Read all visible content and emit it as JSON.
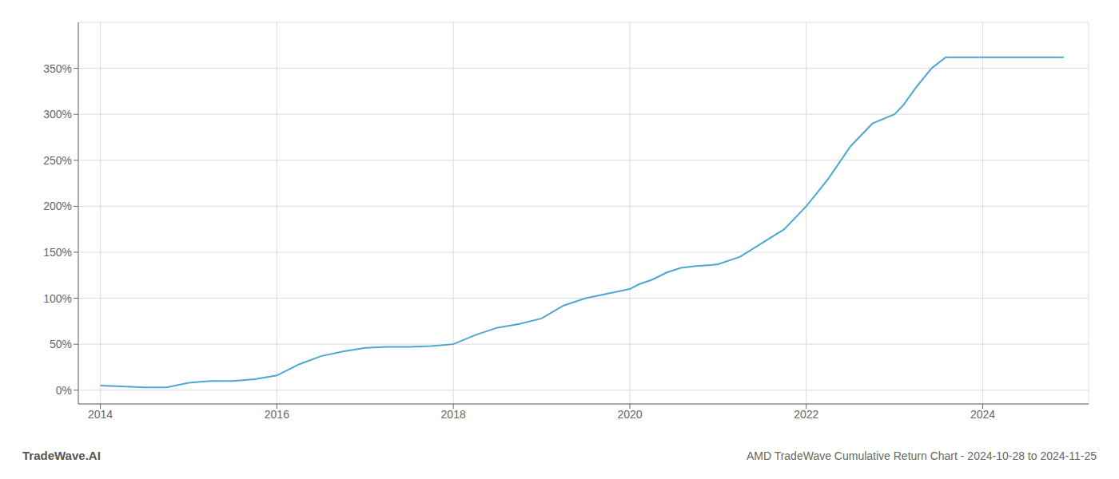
{
  "chart_data": {
    "type": "line",
    "title": "AMD TradeWave Cumulative Return Chart - 2024-10-28 to 2024-11-25",
    "annotations": [
      "TradeWave.AI"
    ],
    "color": "#4da8d0",
    "x": [
      2014.0,
      2014.25,
      2014.5,
      2014.75,
      2015.0,
      2015.25,
      2015.5,
      2015.75,
      2016.0,
      2016.25,
      2016.5,
      2016.75,
      2017.0,
      2017.25,
      2017.5,
      2017.75,
      2018.0,
      2018.25,
      2018.5,
      2018.75,
      2019.0,
      2019.25,
      2019.5,
      2019.75,
      2020.0,
      2020.1,
      2020.25,
      2020.42,
      2020.58,
      2020.75,
      2020.92,
      2021.0,
      2021.25,
      2021.5,
      2021.75,
      2022.0,
      2022.25,
      2022.5,
      2022.75,
      2023.0,
      2023.1,
      2023.25,
      2023.42,
      2023.58,
      2024.0,
      2024.25,
      2024.5,
      2024.75,
      2024.92
    ],
    "values": [
      5,
      4,
      3,
      3,
      8,
      10,
      10,
      12,
      16,
      28,
      37,
      42,
      46,
      47,
      47,
      48,
      50,
      60,
      68,
      72,
      78,
      92,
      100,
      105,
      110,
      115,
      120,
      128,
      133,
      135,
      136,
      137,
      145,
      160,
      175,
      200,
      230,
      265,
      290,
      300,
      310,
      330,
      350,
      362,
      362,
      362,
      362,
      362,
      362
    ],
    "xlim": [
      2013.75,
      2025.2
    ],
    "ylim": [
      -15,
      400
    ],
    "xticks": [
      2014,
      2016,
      2018,
      2020,
      2022,
      2024
    ],
    "yticks": [
      {
        "value": 0,
        "label": "0%"
      },
      {
        "value": 50,
        "label": "50%"
      },
      {
        "value": 100,
        "label": "100%"
      },
      {
        "value": 150,
        "label": "150%"
      },
      {
        "value": 200,
        "label": "200%"
      },
      {
        "value": 250,
        "label": "250%"
      },
      {
        "value": 300,
        "label": "300%"
      },
      {
        "value": 350,
        "label": "350%"
      }
    ],
    "grid": true
  }
}
